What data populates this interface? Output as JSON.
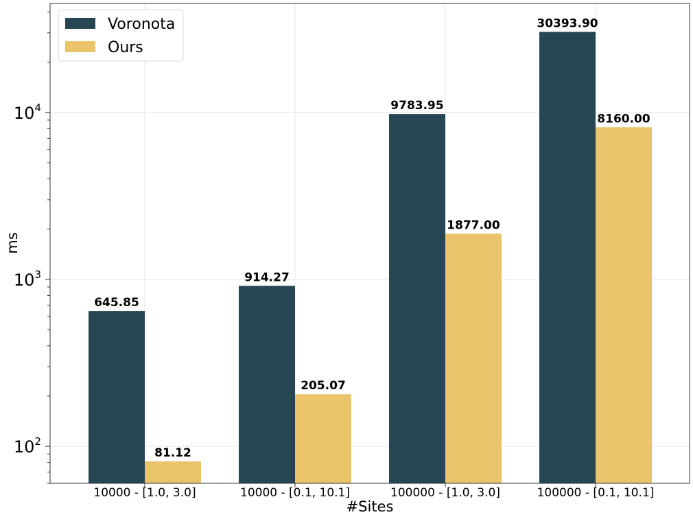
{
  "chart_data": {
    "type": "bar",
    "title": "",
    "xlabel": "#Sites",
    "ylabel": "ms",
    "yscale": "log",
    "ylim": [
      60,
      45000
    ],
    "grid": true,
    "legend_position": "top-left",
    "categories": [
      "10000 - [1.0, 3.0]",
      "10000 - [0.1, 10.1]",
      "100000 - [1.0, 3.0]",
      "100000 - [0.1, 10.1]"
    ],
    "series": [
      {
        "name": "Voronota",
        "color": "#264653",
        "values": [
          645.85,
          914.27,
          9783.95,
          30393.9
        ],
        "labels": [
          "645.85",
          "914.27",
          "9783.95",
          "30393.90"
        ]
      },
      {
        "name": "Ours",
        "color": "#E9C46A",
        "values": [
          81.12,
          205.07,
          1877.0,
          8160.0
        ],
        "labels": [
          "81.12",
          "205.07",
          "1877.00",
          "8160.00"
        ]
      }
    ],
    "yticks": [
      {
        "base": "10",
        "exp": "2",
        "value": 100
      },
      {
        "base": "10",
        "exp": "3",
        "value": 1000
      },
      {
        "base": "10",
        "exp": "4",
        "value": 10000
      }
    ]
  }
}
